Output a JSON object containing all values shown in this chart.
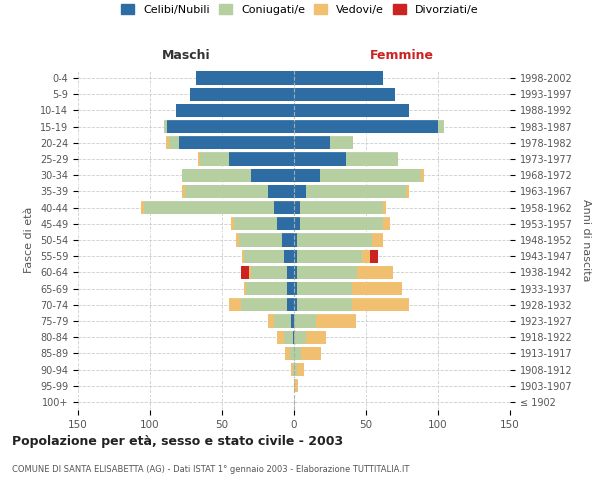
{
  "age_groups": [
    "100+",
    "95-99",
    "90-94",
    "85-89",
    "80-84",
    "75-79",
    "70-74",
    "65-69",
    "60-64",
    "55-59",
    "50-54",
    "45-49",
    "40-44",
    "35-39",
    "30-34",
    "25-29",
    "20-24",
    "15-19",
    "10-14",
    "5-9",
    "0-4"
  ],
  "birth_years": [
    "≤ 1902",
    "1903-1907",
    "1908-1912",
    "1913-1917",
    "1918-1922",
    "1923-1927",
    "1928-1932",
    "1933-1937",
    "1938-1942",
    "1943-1947",
    "1948-1952",
    "1953-1957",
    "1958-1962",
    "1963-1967",
    "1968-1972",
    "1973-1977",
    "1978-1982",
    "1983-1987",
    "1988-1992",
    "1993-1997",
    "1998-2002"
  ],
  "maschi": {
    "celibi": [
      0,
      0,
      0,
      0,
      1,
      2,
      5,
      5,
      5,
      7,
      8,
      12,
      14,
      18,
      30,
      45,
      80,
      88,
      82,
      72,
      68
    ],
    "coniugati": [
      0,
      0,
      1,
      3,
      6,
      12,
      32,
      28,
      25,
      28,
      30,
      30,
      90,
      58,
      48,
      20,
      7,
      2,
      0,
      0,
      0
    ],
    "vedovi": [
      0,
      0,
      1,
      3,
      5,
      4,
      8,
      2,
      1,
      1,
      2,
      2,
      2,
      2,
      0,
      2,
      2,
      0,
      0,
      0,
      0
    ],
    "divorziati": [
      0,
      0,
      0,
      0,
      0,
      0,
      0,
      0,
      6,
      0,
      0,
      0,
      0,
      0,
      0,
      0,
      0,
      0,
      0,
      0,
      0
    ]
  },
  "femmine": {
    "nubili": [
      0,
      0,
      0,
      0,
      0,
      0,
      2,
      2,
      2,
      2,
      2,
      4,
      4,
      8,
      18,
      36,
      25,
      100,
      80,
      70,
      62
    ],
    "coniugate": [
      0,
      1,
      2,
      5,
      8,
      15,
      38,
      38,
      42,
      45,
      52,
      58,
      58,
      70,
      70,
      36,
      16,
      4,
      0,
      0,
      0
    ],
    "vedove": [
      0,
      2,
      5,
      14,
      14,
      28,
      40,
      35,
      25,
      6,
      8,
      5,
      2,
      2,
      2,
      0,
      0,
      0,
      0,
      0,
      0
    ],
    "divorziate": [
      0,
      0,
      0,
      0,
      0,
      0,
      0,
      0,
      0,
      5,
      0,
      0,
      0,
      0,
      0,
      0,
      0,
      0,
      0,
      0,
      0
    ]
  },
  "colors": {
    "celibi": "#2e6da4",
    "coniugati": "#b5cfa0",
    "vedovi": "#f0c070",
    "divorziati": "#cc2222"
  },
  "xlim": 150,
  "title": "Popolazione per età, sesso e stato civile - 2003",
  "subtitle": "COMUNE DI SANTA ELISABETTA (AG) - Dati ISTAT 1° gennaio 2003 - Elaborazione TUTTITALIA.IT",
  "ylabel_left": "Fasce di età",
  "ylabel_right": "Anni di nascita",
  "xlabel_left": "Maschi",
  "xlabel_right": "Femmine",
  "legend_labels": [
    "Celibi/Nubili",
    "Coniugati/e",
    "Vedovi/e",
    "Divorziati/e"
  ],
  "background_color": "#ffffff",
  "grid_color": "#cccccc"
}
